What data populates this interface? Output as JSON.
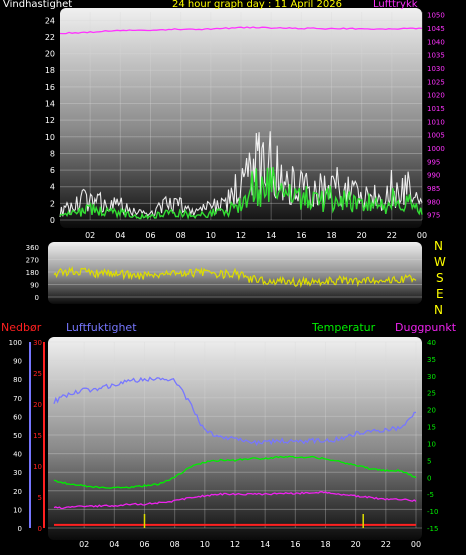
{
  "header": {
    "wind_label": "Vindhastighet",
    "title": "24 hour graph day : 11 April 2026",
    "pressure_label": "Lufttrykk"
  },
  "colors": {
    "wind_label": "#ffffff",
    "title": "#ffff00",
    "pressure": "#ff33ff",
    "direction": "#dddd00",
    "compass": "#ffff00",
    "precip": "#ff2020",
    "humidity": "#7777ff",
    "temperature": "#00ee00",
    "dewpoint": "#ee22ee"
  },
  "compass": [
    "N",
    "W",
    "S",
    "E",
    "N"
  ],
  "bottom_labels": {
    "precip": "Nedbør",
    "humidity": "Luftfuktighet",
    "temperature": "Temperatur",
    "dewpoint": "Duggpunkt"
  },
  "chart_data": [
    {
      "type": "line",
      "panel": "wind",
      "x_ticks": [
        "02",
        "04",
        "06",
        "08",
        "10",
        "12",
        "14",
        "16",
        "18",
        "20",
        "22",
        "00"
      ],
      "y_left_ticks": [
        "0",
        "2",
        "4",
        "6",
        "8",
        "10",
        "12",
        "14",
        "16",
        "18",
        "20",
        "22",
        "24"
      ],
      "ylim_left": [
        0,
        25
      ],
      "y_right_ticks": [
        "975",
        "980",
        "985",
        "990",
        "995",
        "1000",
        "1005",
        "1010",
        "1015",
        "1020",
        "1025",
        "1030",
        "1035",
        "1040",
        "1045",
        "1050"
      ],
      "ylim_right": [
        973,
        1051
      ],
      "series": [
        {
          "name": "Vindhastighet",
          "axis": "left",
          "style": "gust",
          "x": [
            0,
            1,
            2,
            3,
            4,
            5,
            6,
            7,
            8,
            9,
            10,
            11,
            11.5,
            12,
            12.5,
            13,
            13.5,
            14,
            14.5,
            15,
            16,
            17,
            18,
            19,
            20,
            21,
            21.5,
            22,
            22.5,
            23,
            23.5,
            24
          ],
          "values": [
            1,
            2,
            3,
            2,
            2,
            1,
            1,
            2,
            2,
            1,
            2,
            2,
            4,
            4,
            6,
            8,
            7,
            9,
            6,
            5,
            5,
            4,
            5,
            4,
            3,
            4,
            2,
            5,
            3,
            5,
            3,
            2
          ]
        },
        {
          "name": "Vindhastighet",
          "axis": "left",
          "style": "avg",
          "x": [
            0,
            1,
            2,
            3,
            4,
            5,
            6,
            7,
            8,
            9,
            10,
            11,
            11.5,
            12,
            12.5,
            13,
            13.5,
            14,
            14.5,
            15,
            16,
            17,
            18,
            19,
            20,
            21,
            21.5,
            22,
            22.5,
            23,
            23.5,
            24
          ],
          "values": [
            0.5,
            1,
            1.5,
            1,
            1,
            0.5,
            0.5,
            1,
            1,
            0.5,
            1,
            1,
            2,
            2.5,
            4,
            5,
            4,
            5.5,
            4,
            3,
            3,
            2.5,
            3,
            2.5,
            2,
            2.5,
            1.5,
            3,
            2,
            3,
            2,
            1
          ]
        },
        {
          "name": "Lufttrykk",
          "axis": "right",
          "x": [
            0,
            2,
            4,
            6,
            8,
            10,
            12,
            14,
            16,
            18,
            20,
            22,
            24
          ],
          "values": [
            1043,
            1043.5,
            1044,
            1044.3,
            1044.5,
            1044.6,
            1045.2,
            1045,
            1044.8,
            1044.8,
            1044.7,
            1044.6,
            1045
          ]
        }
      ]
    },
    {
      "type": "line",
      "panel": "direction",
      "y_ticks": [
        "0",
        "90",
        "180",
        "270",
        "360"
      ],
      "ylim": [
        0,
        360
      ],
      "series": [
        {
          "name": "direction",
          "x": [
            0,
            1,
            2,
            3,
            4,
            5,
            6,
            7,
            8,
            9,
            10,
            11,
            12,
            13,
            14,
            15,
            16,
            17,
            18,
            19,
            20,
            21,
            22,
            23,
            24
          ],
          "values": [
            175,
            185,
            180,
            165,
            170,
            160,
            155,
            165,
            175,
            170,
            180,
            160,
            175,
            130,
            115,
            110,
            105,
            110,
            115,
            120,
            115,
            125,
            130,
            125,
            135
          ]
        }
      ]
    },
    {
      "type": "line",
      "panel": "climate",
      "x_ticks": [
        "02",
        "04",
        "06",
        "08",
        "10",
        "12",
        "14",
        "16",
        "18",
        "20",
        "22",
        "00"
      ],
      "y_humidity_ticks": [
        "0",
        "10",
        "20",
        "30",
        "40",
        "50",
        "60",
        "70",
        "80",
        "90",
        "100"
      ],
      "ylim_humidity": [
        0,
        100
      ],
      "y_precip_ticks": [
        "0",
        "5",
        "10",
        "15",
        "20",
        "25",
        "30"
      ],
      "ylim_precip": [
        0,
        30
      ],
      "y_temp_ticks": [
        "-15",
        "-10",
        "-5",
        "0",
        "5",
        "10",
        "15",
        "20",
        "25",
        "30",
        "35",
        "40"
      ],
      "ylim_temp": [
        -15,
        40
      ],
      "series": [
        {
          "name": "Luftfuktighet",
          "axis": "humidity",
          "x": [
            0,
            1,
            2,
            3,
            4,
            5,
            6,
            7,
            8,
            9,
            10,
            11,
            12,
            13,
            14,
            15,
            16,
            17,
            18,
            19,
            20,
            21,
            22,
            23,
            24
          ],
          "values": [
            68,
            72,
            74,
            75,
            77,
            79,
            80,
            80,
            80,
            67,
            52,
            49,
            48,
            46,
            46,
            47,
            46,
            47,
            47,
            48,
            51,
            52,
            53,
            54,
            62
          ]
        },
        {
          "name": "Temperatur",
          "axis": "temp",
          "x": [
            0,
            1,
            2,
            3,
            4,
            5,
            6,
            7,
            8,
            9,
            10,
            11,
            12,
            13,
            14,
            15,
            16,
            17,
            18,
            19,
            20,
            21,
            22,
            23,
            24
          ],
          "values": [
            -1,
            -2,
            -2.5,
            -3,
            -3,
            -3,
            -2.5,
            -2,
            0,
            3,
            4.5,
            5,
            5,
            5.5,
            5.5,
            6,
            6,
            6,
            5.5,
            4.5,
            3.5,
            2.5,
            2,
            2,
            0
          ]
        },
        {
          "name": "Duggpunkt",
          "axis": "temp",
          "x": [
            0,
            1,
            2,
            3,
            4,
            5,
            6,
            7,
            8,
            9,
            10,
            11,
            12,
            13,
            14,
            15,
            16,
            17,
            18,
            19,
            20,
            21,
            22,
            23,
            24
          ],
          "values": [
            -9,
            -9,
            -8.5,
            -8.5,
            -8.5,
            -8,
            -8,
            -7.5,
            -7,
            -6,
            -5.5,
            -5,
            -5,
            -5,
            -5,
            -4.8,
            -4.8,
            -4.5,
            -4.5,
            -5,
            -5.5,
            -6,
            -6.5,
            -6.5,
            -7
          ]
        },
        {
          "name": "Nedbør",
          "axis": "precip",
          "x": [
            0,
            24
          ],
          "values": [
            0.5,
            0.5
          ]
        }
      ]
    }
  ]
}
